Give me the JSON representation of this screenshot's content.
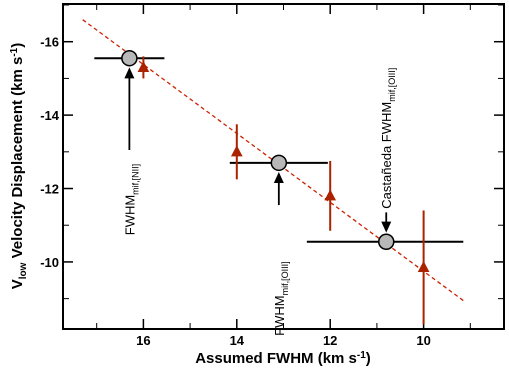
{
  "chart_data": {
    "type": "scatter",
    "title": "",
    "xlabel": {
      "main": "Assumed FWHM (km s",
      "sup": "-1",
      "end": ")"
    },
    "ylabel": {
      "v": "V",
      "sub": "low",
      "rest": " Velocity Displacement (km s",
      "sup": "-1",
      "end": ")"
    },
    "xlim": [
      17.7,
      8.3
    ],
    "ylim": [
      -8.2,
      -17.0
    ],
    "x_reversed": true,
    "y_reversed": true,
    "xticks": [
      16,
      14,
      12,
      10
    ],
    "yticks": [
      -16,
      -14,
      -12,
      -10
    ],
    "grid": false,
    "legend": "none",
    "fit_line": {
      "x": [
        17.3,
        9.1
      ],
      "y": [
        -16.6,
        -8.9
      ],
      "color": "#cc2200",
      "style": "dashed"
    },
    "series": [
      {
        "marker": "circle",
        "color": "#b8b8b8",
        "edge": "#000000",
        "points": [
          {
            "x": 16.3,
            "y": -15.55,
            "xerr": [
              0.75,
              0.75
            ],
            "yerr": [
              0,
              0
            ]
          },
          {
            "x": 13.1,
            "y": -12.7,
            "xerr": [
              1.05,
              1.05
            ],
            "yerr": [
              0,
              0
            ]
          },
          {
            "x": 10.8,
            "y": -10.55,
            "xerr": [
              1.7,
              1.65
            ],
            "yerr": [
              0,
              0
            ]
          }
        ]
      },
      {
        "marker": "triangle",
        "color": "#aa2200",
        "edge": "#aa2200",
        "points": [
          {
            "x": 16.0,
            "y": -15.3,
            "xerr": [
              0,
              0
            ],
            "yerr": [
              0.3,
              0.3
            ]
          },
          {
            "x": 14.0,
            "y": -13.0,
            "xerr": [
              0,
              0
            ],
            "yerr": [
              0.75,
              0.75
            ]
          },
          {
            "x": 12.0,
            "y": -11.8,
            "xerr": [
              0,
              0
            ],
            "yerr": [
              0.95,
              0.95
            ]
          },
          {
            "x": 10.0,
            "y": -9.85,
            "xerr": [
              0,
              0
            ],
            "yerr": [
              1.55,
              1.55
            ]
          }
        ]
      }
    ],
    "annotations": [
      {
        "main": "FWHM",
        "sub": "mif,[NII]",
        "arrow_x": 16.3,
        "arrow_from_y": -13.05,
        "arrow_to_y": -15.3
      },
      {
        "main": "FWHM",
        "sub": "mif,[OIII]",
        "arrow_x": 13.1,
        "arrow_from_y": -11.55,
        "arrow_to_y": -12.45
      },
      {
        "main": "Castañeda FWHM",
        "sub": "mif,[OIII]",
        "arrow_x": 10.8,
        "arrow_from_y": -11.35,
        "arrow_to_y": -10.8
      }
    ]
  }
}
